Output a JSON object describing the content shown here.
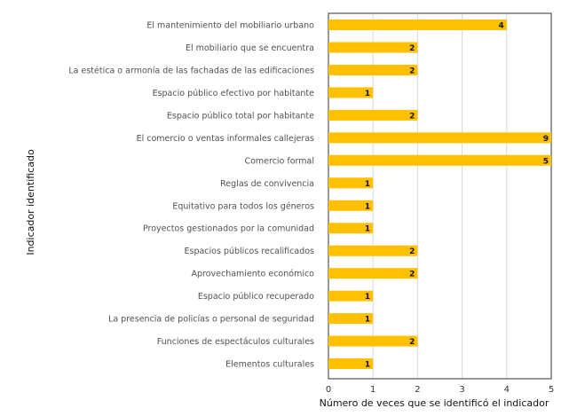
{
  "chart_data": {
    "type": "bar",
    "orientation": "horizontal",
    "title": "",
    "xlabel": "Número de veces que se identificó el indicador",
    "ylabel": "Indicador identificado",
    "xlim": [
      0,
      5
    ],
    "xticks": [
      "0",
      "1",
      "2",
      "3",
      "4",
      "5"
    ],
    "grid": "vertical",
    "bar_color": "#FFC000",
    "categories": [
      "El mantenimiento del mobiliario urbano",
      "El mobiliario que se encuentra",
      "La estética o armonía de las fachadas de las edificaciones",
      "Espacio público efectivo por habitante",
      "Espacio público total por habitante",
      "El comercio o ventas informales callejeras",
      "Comercio formal",
      "Reglas de convivencia",
      "Equitativo para todos los géneros",
      "Proyectos gestionados por la comunidad",
      "Espacios públicos recalificados",
      "Aprovechamiento económico",
      "Espacio público recuperado",
      "La presencia de policías o personal de seguridad",
      "Funciones de espectáculos culturales",
      "Elementos culturales"
    ],
    "values": [
      4,
      2,
      2,
      1,
      2,
      9,
      5,
      1,
      1,
      1,
      2,
      2,
      1,
      1,
      2,
      1
    ],
    "data_labels": [
      "4",
      "2",
      "2",
      "1",
      "2",
      "9",
      "5",
      "1",
      "1",
      "1",
      "2",
      "2",
      "1",
      "1",
      "2",
      "1"
    ]
  }
}
